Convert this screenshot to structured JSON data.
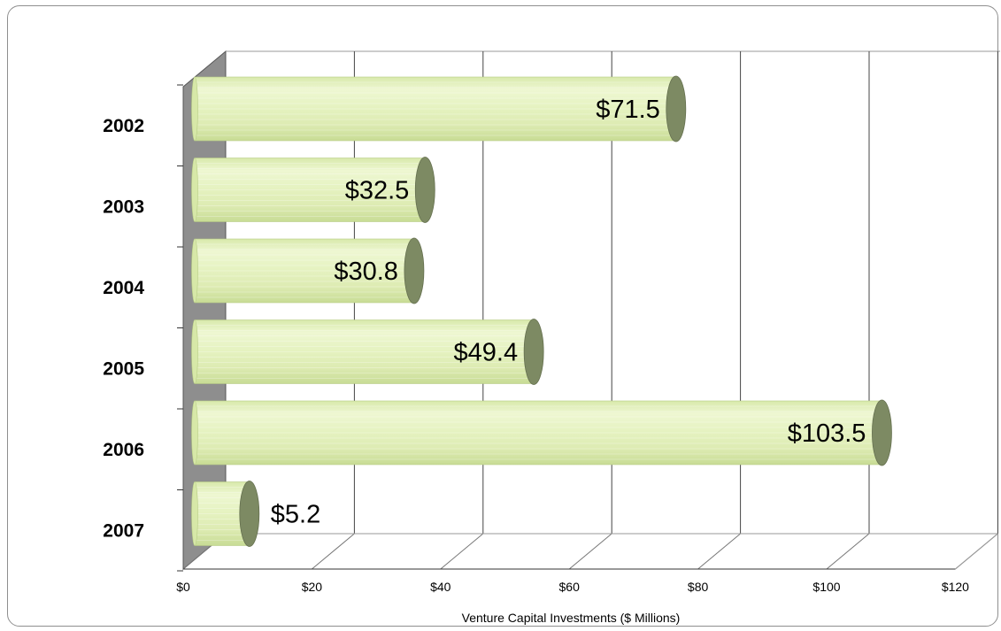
{
  "chart_data": {
    "type": "bar",
    "orientation": "horizontal",
    "style": "3d-cylinder",
    "categories": [
      "2002",
      "2003",
      "2004",
      "2005",
      "2006",
      "2007"
    ],
    "values": [
      71.5,
      32.5,
      30.8,
      49.4,
      103.5,
      5.2
    ],
    "data_labels": [
      "$71.5",
      "$32.5",
      "$30.8",
      "$49.4",
      "$103.5",
      "$5.2"
    ],
    "title": "",
    "xlabel": "Venture Capital Investments ($ Millions)",
    "ylabel": "",
    "xlim": [
      0,
      120
    ],
    "x_ticks": [
      0,
      20,
      40,
      60,
      80,
      100,
      120
    ],
    "x_tick_labels": [
      "$0",
      "$20",
      "$40",
      "$60",
      "$80",
      "$100",
      "$120"
    ],
    "grid": true,
    "legend": "none",
    "colors": {
      "bar_body": "#e4f2bd",
      "bar_body_light": "#f3fadc",
      "bar_body_dark": "#c9df95",
      "bar_cap": "#7d8a63",
      "side_wall": "#8e8e8e",
      "gridline": "#444444",
      "floor_line": "#777777"
    }
  }
}
